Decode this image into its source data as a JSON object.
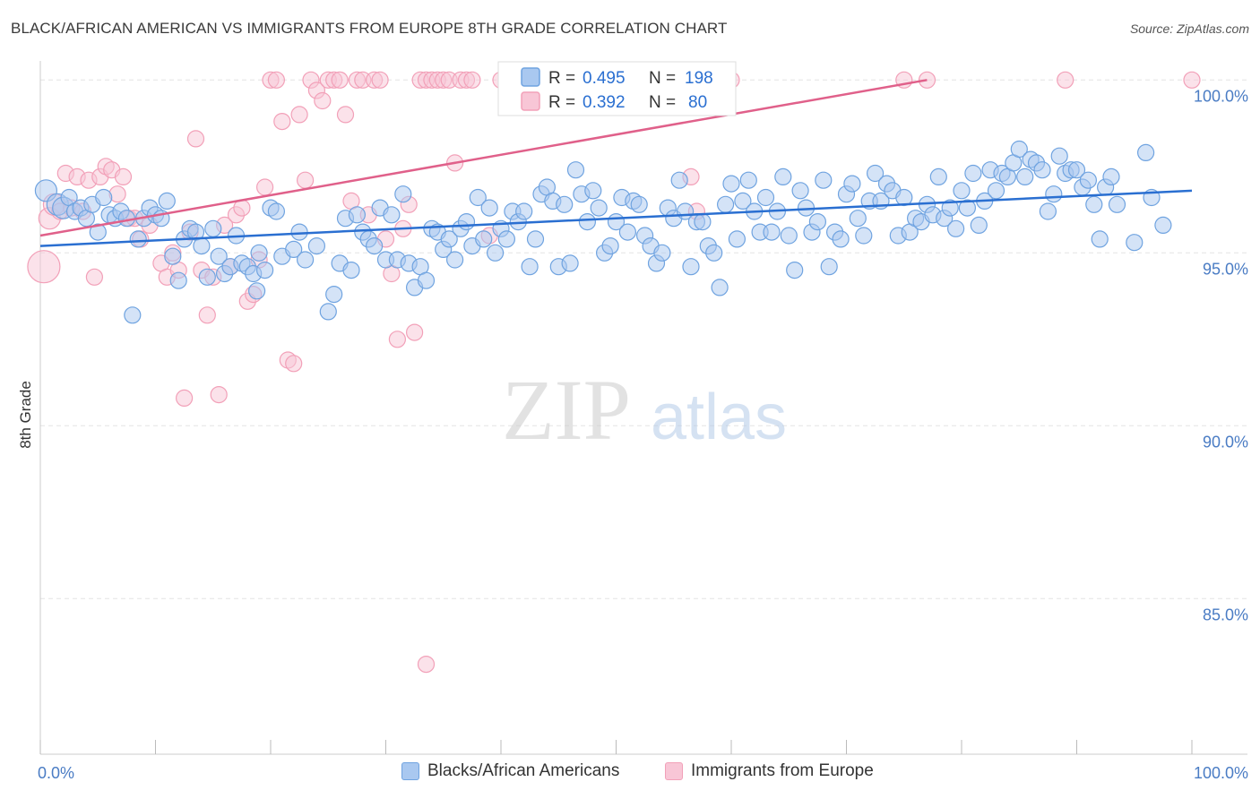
{
  "title": "BLACK/AFRICAN AMERICAN VS IMMIGRANTS FROM EUROPE 8TH GRADE CORRELATION CHART",
  "source": "Source: ZipAtlas.com",
  "watermark": {
    "zip": "ZIP",
    "atlas": "atlas"
  },
  "chart_data": {
    "type": "scatter",
    "ylabel": "8th Grade",
    "xlim": [
      0,
      100
    ],
    "ylim": [
      80.5,
      100.5
    ],
    "x_tick_labels": [
      "0.0%",
      "100.0%"
    ],
    "y_ticks": [
      {
        "value": 100,
        "label": "100.0%"
      },
      {
        "value": 95,
        "label": "95.0%"
      },
      {
        "value": 90,
        "label": "90.0%"
      },
      {
        "value": 85,
        "label": "85.0%"
      }
    ],
    "grid": true,
    "legend_position": "top-center",
    "stats": [
      {
        "r_label": "R =",
        "r_value": "0.495",
        "n_label": "N =",
        "n_value": "198"
      },
      {
        "r_label": "R =",
        "r_value": "0.392",
        "n_label": "N =",
        "n_value": "80"
      }
    ],
    "series": [
      {
        "name": "Blacks/African Americans",
        "color": "#6fa3e0",
        "fill": "#a9c8f0",
        "trend_color": "#2a6fd1",
        "trend": [
          [
            0,
            95.2
          ],
          [
            100,
            96.8
          ]
        ],
        "points": [
          [
            0.5,
            96.8
          ],
          [
            1.5,
            96.4
          ],
          [
            2,
            96.3
          ],
          [
            2.5,
            96.6
          ],
          [
            3,
            96.2
          ],
          [
            3.5,
            96.3
          ],
          [
            4,
            96.0
          ],
          [
            4.5,
            96.4
          ],
          [
            5,
            95.6
          ],
          [
            5.5,
            96.6
          ],
          [
            6,
            96.1
          ],
          [
            6.5,
            96.0
          ],
          [
            7,
            96.2
          ],
          [
            7.5,
            96.0
          ],
          [
            8,
            93.2
          ],
          [
            8.5,
            95.4
          ],
          [
            9,
            96.0
          ],
          [
            9.5,
            96.3
          ],
          [
            10,
            96.1
          ],
          [
            10.5,
            96.0
          ],
          [
            11,
            96.5
          ],
          [
            11.5,
            94.9
          ],
          [
            12,
            94.2
          ],
          [
            12.5,
            95.4
          ],
          [
            13,
            95.7
          ],
          [
            13.5,
            95.6
          ],
          [
            14,
            95.2
          ],
          [
            14.5,
            94.3
          ],
          [
            15,
            95.7
          ],
          [
            15.5,
            94.9
          ],
          [
            16,
            94.4
          ],
          [
            16.5,
            94.6
          ],
          [
            17,
            95.5
          ],
          [
            17.5,
            94.7
          ],
          [
            18,
            94.6
          ],
          [
            18.5,
            94.4
          ],
          [
            19,
            95.0
          ],
          [
            19.5,
            94.5
          ],
          [
            20,
            96.3
          ],
          [
            20.5,
            96.2
          ],
          [
            21,
            94.9
          ],
          [
            22,
            95.1
          ],
          [
            22.5,
            95.6
          ],
          [
            23,
            94.8
          ],
          [
            24,
            95.2
          ],
          [
            25,
            93.3
          ],
          [
            25.5,
            93.8
          ],
          [
            26,
            94.7
          ],
          [
            26.5,
            96.0
          ],
          [
            27,
            94.5
          ],
          [
            27.5,
            96.1
          ],
          [
            28,
            95.6
          ],
          [
            28.5,
            95.4
          ],
          [
            29,
            95.2
          ],
          [
            29.5,
            96.3
          ],
          [
            30,
            94.8
          ],
          [
            30.5,
            96.1
          ],
          [
            31,
            94.8
          ],
          [
            31.5,
            96.7
          ],
          [
            32,
            94.7
          ],
          [
            32.5,
            94.0
          ],
          [
            33,
            94.6
          ],
          [
            33.5,
            94.2
          ],
          [
            34,
            95.7
          ],
          [
            34.5,
            95.6
          ],
          [
            35,
            95.1
          ],
          [
            35.5,
            95.4
          ],
          [
            36,
            94.8
          ],
          [
            36.5,
            95.7
          ],
          [
            37,
            95.9
          ],
          [
            37.5,
            95.2
          ],
          [
            38,
            96.6
          ],
          [
            38.5,
            95.4
          ],
          [
            39,
            96.3
          ],
          [
            39.5,
            95.0
          ],
          [
            40,
            95.7
          ],
          [
            40.5,
            95.4
          ],
          [
            41,
            96.2
          ],
          [
            41.5,
            95.9
          ],
          [
            42,
            96.2
          ],
          [
            42.5,
            94.6
          ],
          [
            43,
            95.4
          ],
          [
            43.5,
            96.7
          ],
          [
            44,
            96.9
          ],
          [
            44.5,
            96.5
          ],
          [
            45,
            94.6
          ],
          [
            45.5,
            96.4
          ],
          [
            46,
            94.7
          ],
          [
            46.5,
            97.4
          ],
          [
            47,
            96.7
          ],
          [
            47.5,
            95.9
          ],
          [
            48,
            96.8
          ],
          [
            48.5,
            96.3
          ],
          [
            49,
            95.0
          ],
          [
            49.5,
            95.2
          ],
          [
            50,
            95.9
          ],
          [
            50.5,
            96.6
          ],
          [
            51,
            95.6
          ],
          [
            51.5,
            96.5
          ],
          [
            52,
            96.4
          ],
          [
            52.5,
            95.5
          ],
          [
            53,
            95.2
          ],
          [
            53.5,
            94.7
          ],
          [
            54,
            95.0
          ],
          [
            54.5,
            96.3
          ],
          [
            55,
            96.0
          ],
          [
            55.5,
            97.1
          ],
          [
            56,
            96.2
          ],
          [
            56.5,
            94.6
          ],
          [
            57,
            95.9
          ],
          [
            57.5,
            95.9
          ],
          [
            58,
            95.2
          ],
          [
            58.5,
            95.0
          ],
          [
            59,
            94.0
          ],
          [
            59.5,
            96.4
          ],
          [
            60,
            97.0
          ],
          [
            60.5,
            95.4
          ],
          [
            61,
            96.5
          ],
          [
            61.5,
            97.1
          ],
          [
            62,
            96.2
          ],
          [
            62.5,
            95.6
          ],
          [
            63,
            96.6
          ],
          [
            63.5,
            95.6
          ],
          [
            64,
            96.2
          ],
          [
            64.5,
            97.2
          ],
          [
            65,
            95.5
          ],
          [
            65.5,
            94.5
          ],
          [
            66,
            96.8
          ],
          [
            66.5,
            96.3
          ],
          [
            67,
            95.6
          ],
          [
            67.5,
            95.9
          ],
          [
            68,
            97.1
          ],
          [
            68.5,
            94.6
          ],
          [
            69,
            95.6
          ],
          [
            69.5,
            95.4
          ],
          [
            70,
            96.7
          ],
          [
            70.5,
            97.0
          ],
          [
            71,
            96.0
          ],
          [
            71.5,
            95.5
          ],
          [
            72,
            96.5
          ],
          [
            72.5,
            97.3
          ],
          [
            73,
            96.5
          ],
          [
            73.5,
            97.0
          ],
          [
            74,
            96.8
          ],
          [
            74.5,
            95.5
          ],
          [
            75,
            96.6
          ],
          [
            75.5,
            95.6
          ],
          [
            76,
            96.0
          ],
          [
            76.5,
            95.9
          ],
          [
            77,
            96.4
          ],
          [
            77.5,
            96.1
          ],
          [
            78,
            97.2
          ],
          [
            78.5,
            96.0
          ],
          [
            79,
            96.3
          ],
          [
            79.5,
            95.7
          ],
          [
            80,
            96.8
          ],
          [
            80.5,
            96.3
          ],
          [
            81,
            97.3
          ],
          [
            81.5,
            95.8
          ],
          [
            82,
            96.5
          ],
          [
            82.5,
            97.4
          ],
          [
            83,
            96.8
          ],
          [
            83.5,
            97.3
          ],
          [
            84,
            97.2
          ],
          [
            84.5,
            97.6
          ],
          [
            85,
            98.0
          ],
          [
            85.5,
            97.2
          ],
          [
            86,
            97.7
          ],
          [
            86.5,
            97.6
          ],
          [
            87,
            97.4
          ],
          [
            87.5,
            96.2
          ],
          [
            88,
            96.7
          ],
          [
            88.5,
            97.8
          ],
          [
            89,
            97.3
          ],
          [
            89.5,
            97.4
          ],
          [
            90,
            97.4
          ],
          [
            90.5,
            96.9
          ],
          [
            91,
            97.1
          ],
          [
            91.5,
            96.4
          ],
          [
            92,
            95.4
          ],
          [
            92.5,
            96.9
          ],
          [
            93,
            97.2
          ],
          [
            93.5,
            96.4
          ],
          [
            95,
            95.3
          ],
          [
            96,
            97.9
          ],
          [
            96.5,
            96.6
          ],
          [
            97.5,
            95.8
          ],
          [
            18.8,
            93.9
          ]
        ]
      },
      {
        "name": "Immigrants from Europe",
        "color": "#f2a0b8",
        "fill": "#f8c6d6",
        "trend_color": "#e0608a",
        "trend": [
          [
            0,
            95.5
          ],
          [
            77,
            100.0
          ]
        ],
        "points": [
          [
            0.3,
            94.6
          ],
          [
            0.8,
            96.0
          ],
          [
            1.2,
            96.4
          ],
          [
            1.7,
            96.2
          ],
          [
            2.2,
            97.3
          ],
          [
            2.7,
            96.3
          ],
          [
            3.2,
            97.2
          ],
          [
            3.7,
            96.2
          ],
          [
            4.2,
            97.1
          ],
          [
            4.7,
            94.3
          ],
          [
            5.2,
            97.2
          ],
          [
            5.7,
            97.5
          ],
          [
            6.2,
            97.4
          ],
          [
            6.7,
            96.7
          ],
          [
            7.2,
            97.2
          ],
          [
            7.7,
            96.0
          ],
          [
            8.2,
            96.0
          ],
          [
            8.7,
            95.4
          ],
          [
            9.5,
            95.8
          ],
          [
            10.5,
            94.7
          ],
          [
            11,
            94.3
          ],
          [
            11.5,
            95.0
          ],
          [
            12,
            94.5
          ],
          [
            12.5,
            90.8
          ],
          [
            13,
            95.6
          ],
          [
            13.5,
            98.3
          ],
          [
            14,
            94.5
          ],
          [
            14.5,
            93.2
          ],
          [
            15,
            94.3
          ],
          [
            15.5,
            90.9
          ],
          [
            16,
            95.8
          ],
          [
            16.5,
            94.6
          ],
          [
            17,
            96.1
          ],
          [
            17.5,
            96.3
          ],
          [
            18,
            93.6
          ],
          [
            18.5,
            93.8
          ],
          [
            19,
            94.8
          ],
          [
            19.5,
            96.9
          ],
          [
            20,
            100
          ],
          [
            20.5,
            100
          ],
          [
            21,
            98.8
          ],
          [
            21.5,
            91.9
          ],
          [
            22,
            91.8
          ],
          [
            22.5,
            99.0
          ],
          [
            23,
            97.1
          ],
          [
            23.5,
            100
          ],
          [
            24,
            99.7
          ],
          [
            24.5,
            99.4
          ],
          [
            25,
            100
          ],
          [
            25.5,
            100
          ],
          [
            26,
            100
          ],
          [
            26.5,
            99.0
          ],
          [
            27,
            96.5
          ],
          [
            27.5,
            100
          ],
          [
            28,
            100
          ],
          [
            28.5,
            96.1
          ],
          [
            29,
            100
          ],
          [
            29.5,
            100
          ],
          [
            30,
            95.4
          ],
          [
            30.5,
            94.4
          ],
          [
            31,
            92.5
          ],
          [
            31.5,
            95.7
          ],
          [
            32,
            96.4
          ],
          [
            32.5,
            92.7
          ],
          [
            33,
            100
          ],
          [
            33.5,
            100
          ],
          [
            34,
            100
          ],
          [
            34.5,
            100
          ],
          [
            35,
            100
          ],
          [
            35.5,
            100
          ],
          [
            36,
            97.6
          ],
          [
            36.5,
            100
          ],
          [
            37,
            100
          ],
          [
            37.5,
            100
          ],
          [
            39,
            95.5
          ],
          [
            40,
            100
          ],
          [
            41,
            100
          ],
          [
            44,
            100
          ],
          [
            44.5,
            100
          ],
          [
            45,
            100
          ],
          [
            46,
            100
          ],
          [
            47,
            100
          ],
          [
            50,
            100
          ],
          [
            52,
            100
          ],
          [
            53,
            100
          ],
          [
            56.5,
            97.2
          ],
          [
            57,
            96.2
          ],
          [
            60,
            100
          ],
          [
            75,
            100
          ],
          [
            77,
            100
          ],
          [
            89,
            100
          ],
          [
            100,
            100
          ],
          [
            33.5,
            83.1
          ]
        ]
      }
    ]
  }
}
